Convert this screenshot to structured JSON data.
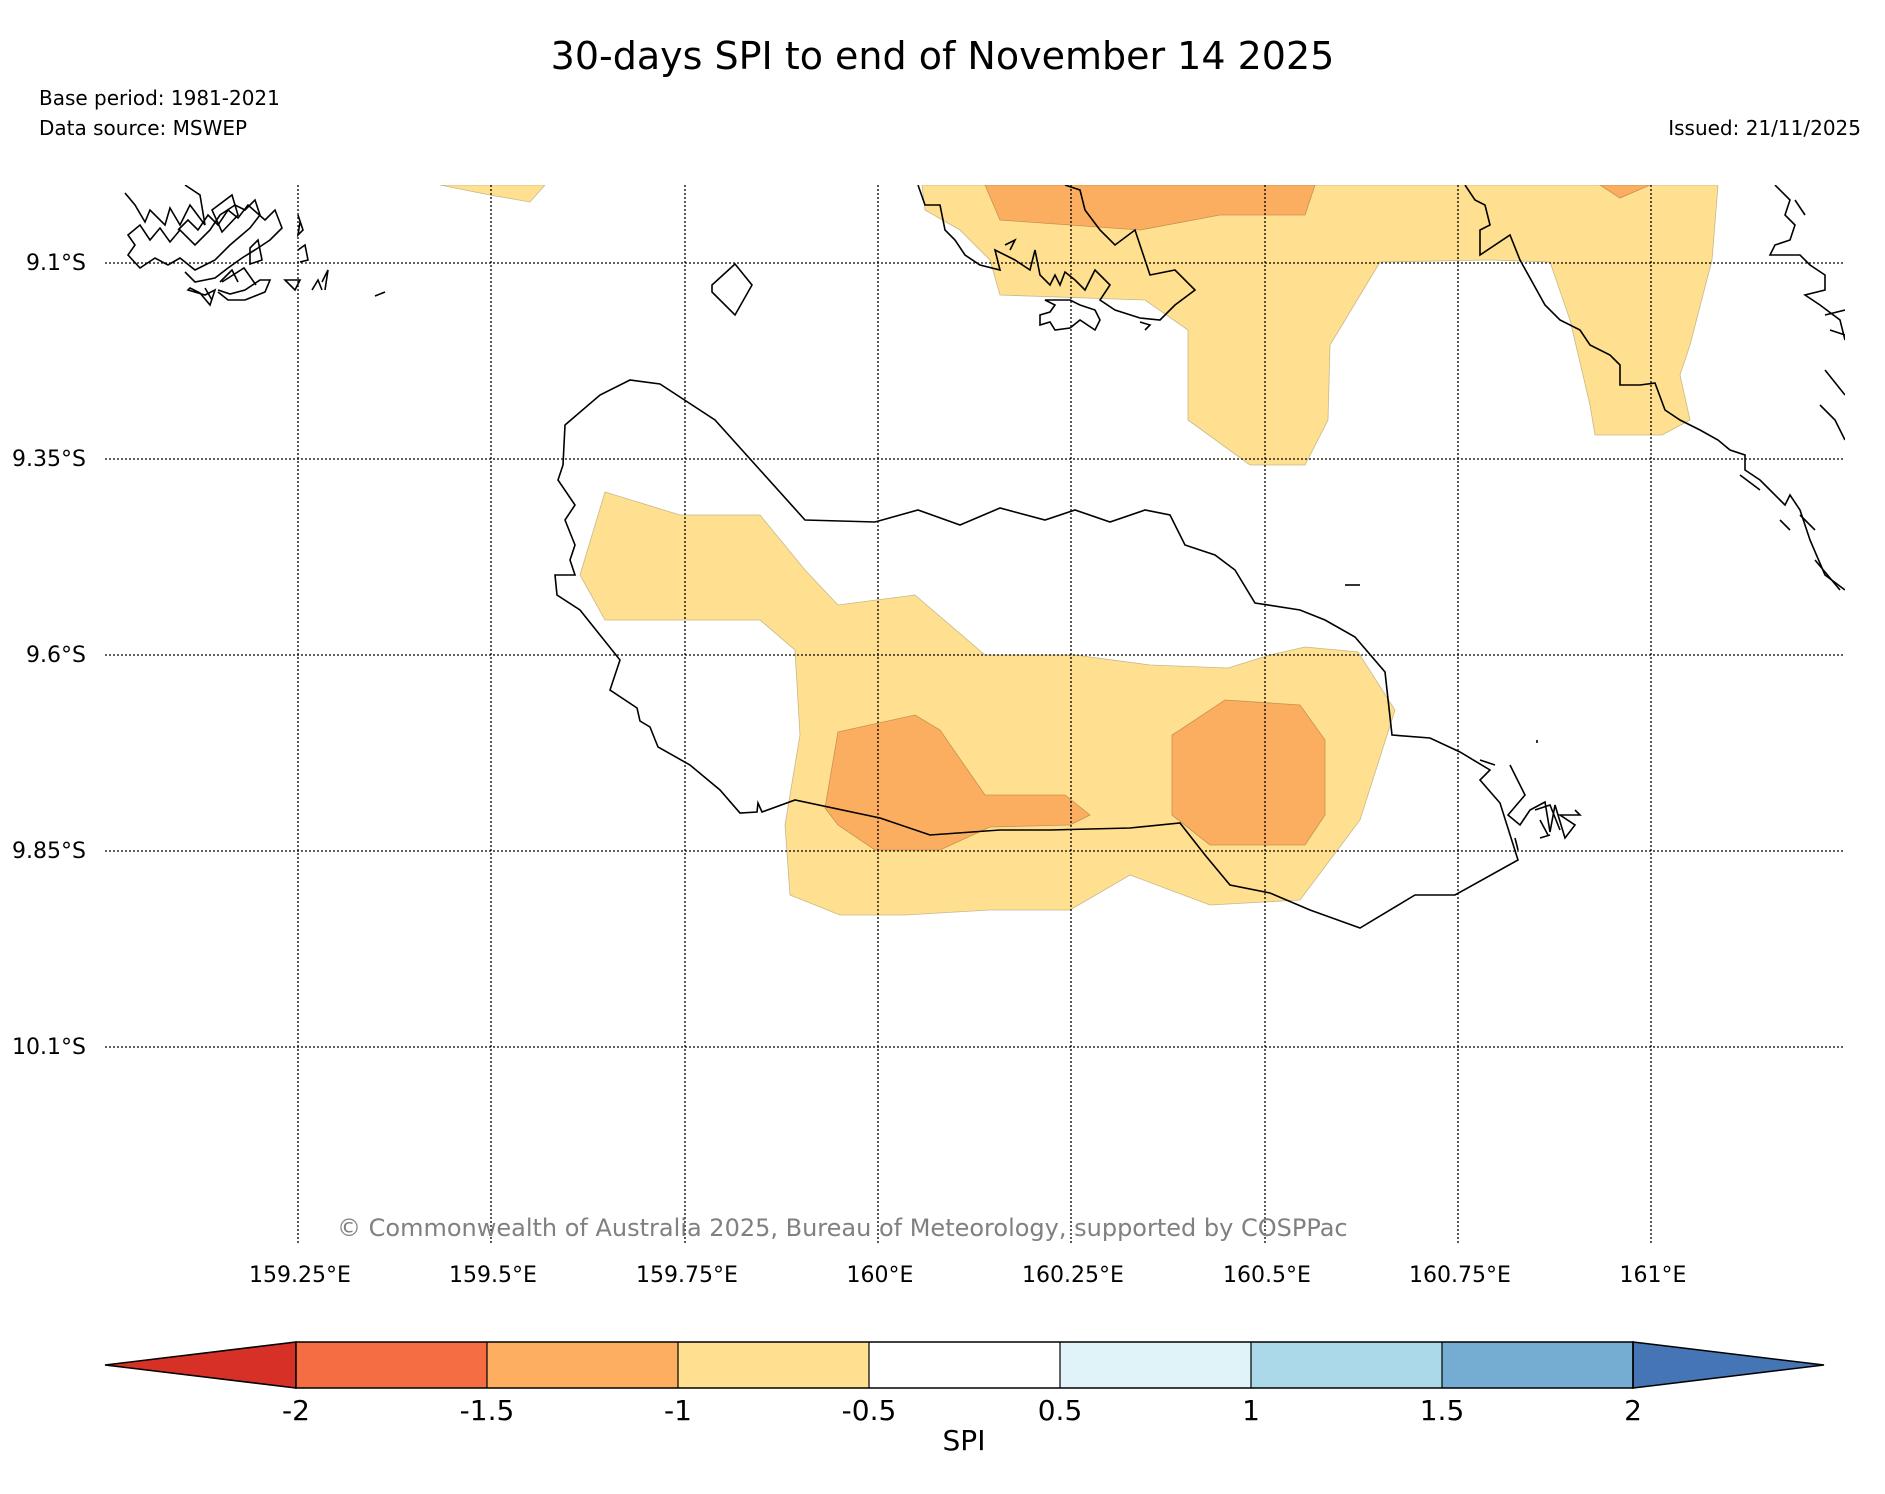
{
  "header": {
    "title": "30-days SPI to end of November 14 2025",
    "base_period": "Base period: 1981-2021",
    "data_source": "Data source: MSWEP",
    "issued": "Issued: 21/11/2025"
  },
  "map": {
    "region": "Guadalcanal, Solomon Islands",
    "lat_labels": [
      "9.1°S",
      "9.35°S",
      "9.6°S",
      "9.85°S",
      "10.1°S"
    ],
    "lon_labels": [
      "159.25°E",
      "159.5°E",
      "159.75°E",
      "160°E",
      "160.25°E",
      "160.5°E",
      "160.75°E",
      "161°E"
    ],
    "copyright": "© Commonwealth of Australia 2025, Bureau of Meteorology, supported by COSPPac",
    "fill_classes": {
      "moderately_dry": {
        "range": "-1.5 to -1",
        "color": "#fcae60"
      },
      "slightly_dry": {
        "range": "-1 to -0.5",
        "color": "#fee090"
      }
    }
  },
  "colorbar": {
    "label": "SPI",
    "ticks": [
      "-2",
      "-1.5",
      "-1",
      "-0.5",
      "0.5",
      "1",
      "1.5",
      "2"
    ],
    "colors": {
      "below_min": "#d73027",
      "bins": [
        "#f46d43",
        "#fdae61",
        "#fee090",
        "#ffffff",
        "#e0f3f8",
        "#abd9e9",
        "#74add1"
      ],
      "above_max": "#4575b4"
    }
  }
}
